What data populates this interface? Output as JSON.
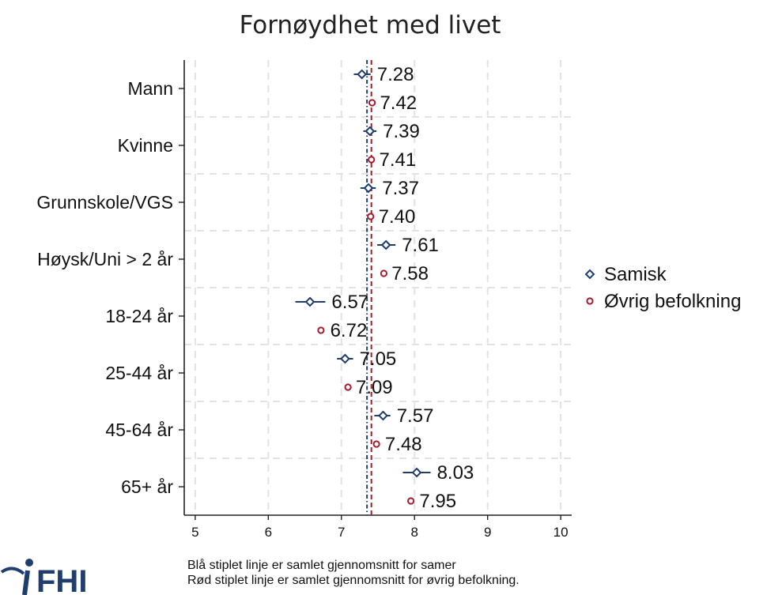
{
  "chart_data": {
    "type": "scatter",
    "orientation": "horizontal-dot-plot-with-ci",
    "title": "Fornøydhet med livet",
    "xlabel": "",
    "ylabel": "",
    "xlim": [
      4.85,
      10.15
    ],
    "xticks": [
      5,
      6,
      7,
      8,
      9,
      10
    ],
    "grid": true,
    "legend_position": "right",
    "categories": [
      "Mann",
      "Kvinne",
      "Grunnskole/VGS",
      "Høysk/Uni > 2 år",
      "18-24 år",
      "25-44 år",
      "45-64 år",
      "65+ år"
    ],
    "series": [
      {
        "name": "Samisk",
        "marker": "diamond",
        "color": "#1f3e6f",
        "values": [
          7.28,
          7.39,
          7.37,
          7.61,
          6.57,
          7.05,
          7.57,
          8.03
        ],
        "labels": [
          "7.28",
          "7.39",
          "7.37",
          "7.61",
          "6.57",
          "7.05",
          "7.57",
          "8.03"
        ],
        "ci_low": [
          7.17,
          7.3,
          7.26,
          7.49,
          6.37,
          6.94,
          7.45,
          7.84
        ],
        "ci_high": [
          7.4,
          7.48,
          7.47,
          7.74,
          6.78,
          7.16,
          7.67,
          8.22
        ]
      },
      {
        "name": "Øvrig befolkning",
        "marker": "circle",
        "color": "#a31c2c",
        "values": [
          7.42,
          7.41,
          7.4,
          7.58,
          6.72,
          7.09,
          7.48,
          7.95
        ],
        "labels": [
          "7.42",
          "7.41",
          "7.40",
          "7.58",
          "6.72",
          "7.09",
          "7.48",
          "7.95"
        ],
        "ci_low": [
          7.4,
          7.39,
          7.38,
          7.56,
          6.68,
          7.07,
          7.45,
          7.92
        ],
        "ci_high": [
          7.44,
          7.43,
          7.42,
          7.6,
          6.76,
          7.11,
          7.51,
          7.98
        ]
      }
    ],
    "reference_lines": [
      {
        "value": 7.35,
        "color": "#1f3e6f",
        "style": "dash-dot"
      },
      {
        "value": 7.41,
        "color": "#a31c2c",
        "style": "dashed"
      }
    ]
  },
  "notes": [
    "Blå stiplet linje er samlet gjennomsnitt for samer",
    "Rød stiplet linje er samlet gjennomsnitt for øvrig befolkning."
  ],
  "logo": {
    "text": "FHI"
  }
}
